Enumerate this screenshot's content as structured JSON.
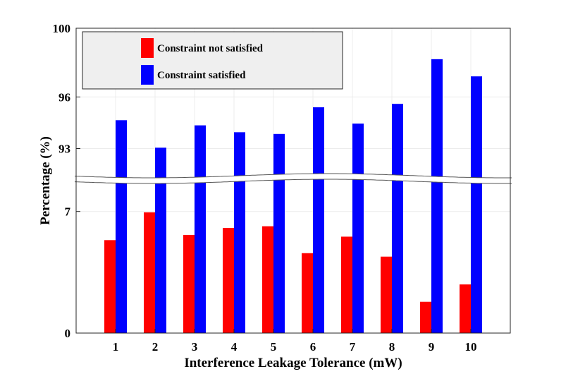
{
  "chart_data": {
    "type": "bar",
    "xlabel": "Interference Leakage Tolerance (mW)",
    "ylabel": "Percentage (%)",
    "categories": [
      "1",
      "2",
      "3",
      "4",
      "5",
      "6",
      "7",
      "8",
      "9",
      "10"
    ],
    "broken_axis": {
      "lower_range": [
        0,
        7.8
      ],
      "upper_range": [
        92.2,
        100
      ],
      "lower_ticks": [
        "0",
        "7"
      ],
      "upper_ticks": [
        "93",
        "96",
        "100"
      ]
    },
    "series": [
      {
        "name": "Constraint not satisfied",
        "color": "#ff0000",
        "values": [
          5.35,
          6.95,
          5.65,
          6.05,
          6.15,
          4.6,
          5.55,
          4.4,
          1.8,
          2.8
        ]
      },
      {
        "name": "Constraint satisfied",
        "color": "#0000ff",
        "values": [
          94.65,
          93.05,
          94.35,
          93.95,
          93.85,
          95.4,
          94.45,
          95.6,
          98.2,
          97.2
        ]
      }
    ],
    "legend": {
      "placement": "top-left"
    },
    "grid": true
  }
}
